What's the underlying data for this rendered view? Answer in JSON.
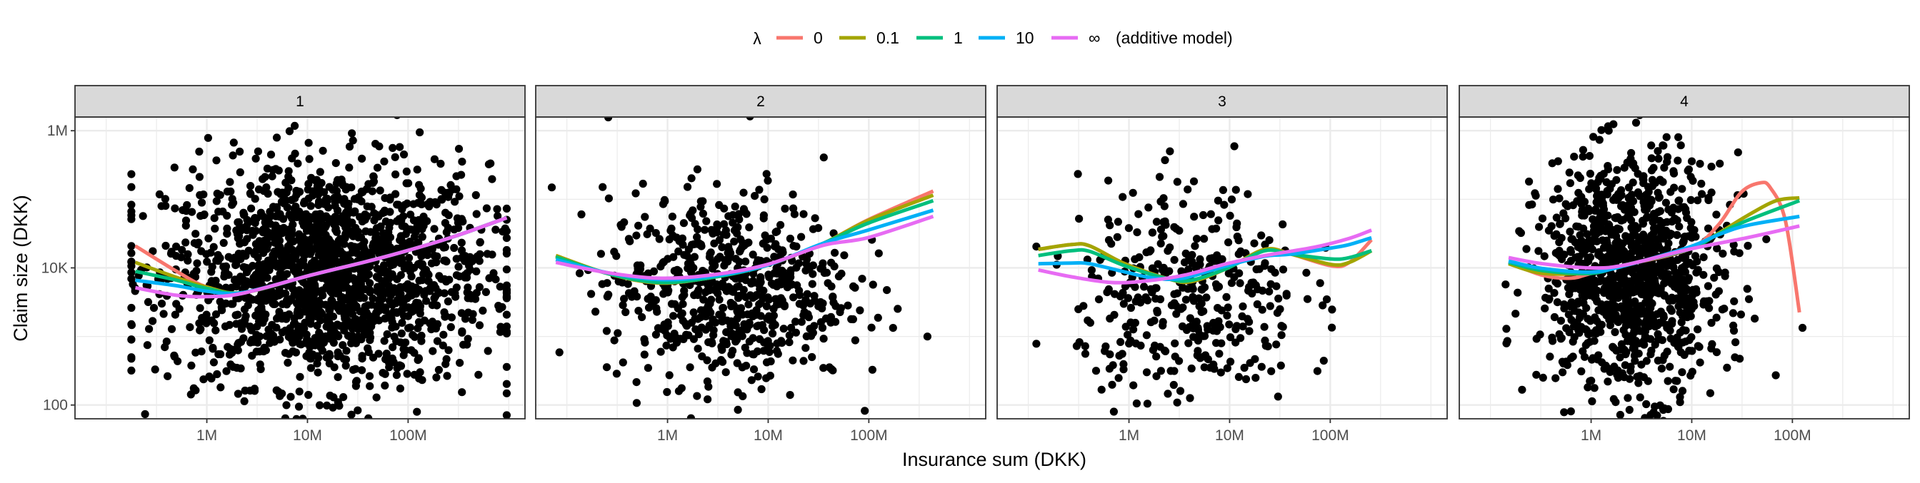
{
  "chart_data": {
    "type": "scatter",
    "title": "",
    "xlabel": "Insurance sum (DKK)",
    "ylabel": "Claim size (DKK)",
    "x_scale": "log10",
    "y_scale": "log10",
    "xlim": [
      49000,
      1450000000
    ],
    "ylim": [
      63,
      1585000
    ],
    "grid": true,
    "x_ticks": [
      {
        "value": 1000000,
        "label": "1M"
      },
      {
        "value": 10000000,
        "label": "10M"
      },
      {
        "value": 100000000,
        "label": "100M"
      }
    ],
    "y_ticks": [
      {
        "value": 100,
        "label": "100"
      },
      {
        "value": 10000,
        "label": "10K"
      },
      {
        "value": 1000000,
        "label": "1M"
      }
    ],
    "legend": {
      "placement": "top",
      "title": "λ",
      "entries": [
        {
          "label": "0",
          "color": "#F8766D"
        },
        {
          "label": "0.1",
          "color": "#A3A500"
        },
        {
          "label": "1",
          "color": "#00BF7D"
        },
        {
          "label": "10",
          "color": "#00B0F6"
        },
        {
          "label": "∞",
          "suffix": "(additive model)",
          "color": "#E76BF3"
        }
      ]
    },
    "facets": [
      {
        "label": "1",
        "points_summary": {
          "n": 1800,
          "log10_x_mean": 7.2,
          "log10_x_sd": 0.8,
          "log10_x_range": [
            5.25,
            8.98
          ],
          "log10_y_mean": 3.9,
          "log10_y_sd": 0.8
        },
        "lines": [
          {
            "lambda": "0",
            "log10_xy": [
              [
                5.29,
                4.32
              ],
              [
                5.7,
                3.95
              ],
              [
                6.0,
                3.72
              ],
              [
                6.36,
                3.64
              ],
              [
                7.05,
                3.9
              ],
              [
                7.74,
                4.15
              ],
              [
                8.42,
                4.44
              ],
              [
                8.98,
                4.73
              ]
            ]
          },
          {
            "lambda": "0.1",
            "log10_xy": [
              [
                5.29,
                4.08
              ],
              [
                5.7,
                3.86
              ],
              [
                6.0,
                3.72
              ],
              [
                6.36,
                3.64
              ],
              [
                7.05,
                3.9
              ],
              [
                7.74,
                4.15
              ],
              [
                8.42,
                4.44
              ],
              [
                8.98,
                4.73
              ]
            ]
          },
          {
            "lambda": "1",
            "log10_xy": [
              [
                5.29,
                3.95
              ],
              [
                5.7,
                3.82
              ],
              [
                6.0,
                3.7
              ],
              [
                6.36,
                3.64
              ],
              [
                7.05,
                3.9
              ],
              [
                7.74,
                4.15
              ],
              [
                8.42,
                4.44
              ],
              [
                8.98,
                4.73
              ]
            ]
          },
          {
            "lambda": "10",
            "log10_xy": [
              [
                5.29,
                3.82
              ],
              [
                5.7,
                3.74
              ],
              [
                6.0,
                3.66
              ],
              [
                6.36,
                3.64
              ],
              [
                7.05,
                3.9
              ],
              [
                7.74,
                4.15
              ],
              [
                8.42,
                4.44
              ],
              [
                8.98,
                4.73
              ]
            ]
          },
          {
            "lambda": "∞",
            "log10_xy": [
              [
                5.29,
                3.71
              ],
              [
                5.7,
                3.6
              ],
              [
                6.0,
                3.58
              ],
              [
                6.36,
                3.63
              ],
              [
                7.05,
                3.9
              ],
              [
                7.74,
                4.15
              ],
              [
                8.42,
                4.44
              ],
              [
                8.98,
                4.73
              ]
            ]
          }
        ]
      },
      {
        "label": "2",
        "points_summary": {
          "n": 650,
          "log10_x_mean": 6.6,
          "log10_x_sd": 0.6,
          "log10_x_range": [
            4.85,
            8.65
          ],
          "log10_y_mean": 3.7,
          "log10_y_sd": 0.7
        },
        "lines": [
          {
            "lambda": "0",
            "log10_xy": [
              [
                4.89,
                4.18
              ],
              [
                5.4,
                3.92
              ],
              [
                5.9,
                3.78
              ],
              [
                6.4,
                3.85
              ],
              [
                6.97,
                4.03
              ],
              [
                7.55,
                4.36
              ],
              [
                7.99,
                4.7
              ],
              [
                8.64,
                5.12
              ]
            ]
          },
          {
            "lambda": "0.1",
            "log10_xy": [
              [
                4.89,
                4.18
              ],
              [
                5.4,
                3.92
              ],
              [
                5.9,
                3.78
              ],
              [
                6.4,
                3.85
              ],
              [
                6.97,
                4.03
              ],
              [
                7.55,
                4.36
              ],
              [
                7.99,
                4.69
              ],
              [
                8.64,
                5.06
              ]
            ]
          },
          {
            "lambda": "1",
            "log10_xy": [
              [
                4.89,
                4.16
              ],
              [
                5.4,
                3.92
              ],
              [
                5.9,
                3.79
              ],
              [
                6.4,
                3.85
              ],
              [
                6.97,
                4.03
              ],
              [
                7.55,
                4.36
              ],
              [
                7.99,
                4.65
              ],
              [
                8.64,
                4.98
              ]
            ]
          },
          {
            "lambda": "10",
            "log10_xy": [
              [
                4.89,
                4.12
              ],
              [
                5.4,
                3.93
              ],
              [
                5.9,
                3.83
              ],
              [
                6.4,
                3.87
              ],
              [
                6.97,
                4.03
              ],
              [
                7.55,
                4.36
              ],
              [
                7.99,
                4.55
              ],
              [
                8.64,
                4.84
              ]
            ]
          },
          {
            "lambda": "∞",
            "log10_xy": [
              [
                4.89,
                4.08
              ],
              [
                5.4,
                3.93
              ],
              [
                5.9,
                3.85
              ],
              [
                6.4,
                3.89
              ],
              [
                6.97,
                4.04
              ],
              [
                7.55,
                4.33
              ],
              [
                7.99,
                4.44
              ],
              [
                8.64,
                4.75
              ]
            ]
          }
        ]
      },
      {
        "label": "3",
        "points_summary": {
          "n": 380,
          "log10_x_mean": 6.6,
          "log10_x_sd": 0.55,
          "log10_x_range": [
            5.08,
            8.42
          ],
          "log10_y_mean": 3.6,
          "log10_y_sd": 0.8
        },
        "lines": [
          {
            "lambda": "0",
            "log10_xy": [
              [
                5.1,
                4.27
              ],
              [
                5.43,
                4.34
              ],
              [
                5.61,
                4.32
              ],
              [
                5.96,
                4.06
              ],
              [
                6.39,
                3.84
              ],
              [
                6.62,
                3.8
              ],
              [
                6.97,
                3.99
              ],
              [
                7.35,
                4.27
              ],
              [
                7.61,
                4.2
              ],
              [
                8.01,
                4.03
              ],
              [
                8.19,
                4.08
              ],
              [
                8.41,
                4.41
              ]
            ]
          },
          {
            "lambda": "0.1",
            "log10_xy": [
              [
                5.1,
                4.27
              ],
              [
                5.43,
                4.34
              ],
              [
                5.61,
                4.32
              ],
              [
                5.96,
                4.06
              ],
              [
                6.39,
                3.84
              ],
              [
                6.62,
                3.8
              ],
              [
                6.97,
                3.99
              ],
              [
                7.35,
                4.27
              ],
              [
                7.61,
                4.2
              ],
              [
                8.01,
                4.05
              ],
              [
                8.19,
                4.08
              ],
              [
                8.41,
                4.25
              ]
            ]
          },
          {
            "lambda": "1",
            "log10_xy": [
              [
                5.1,
                4.18
              ],
              [
                5.43,
                4.25
              ],
              [
                5.61,
                4.24
              ],
              [
                5.96,
                4.03
              ],
              [
                6.39,
                3.84
              ],
              [
                6.62,
                3.82
              ],
              [
                6.97,
                3.99
              ],
              [
                7.35,
                4.25
              ],
              [
                7.61,
                4.2
              ],
              [
                8.01,
                4.13
              ],
              [
                8.19,
                4.15
              ],
              [
                8.41,
                4.25
              ]
            ]
          },
          {
            "lambda": "10",
            "log10_xy": [
              [
                5.1,
                4.06
              ],
              [
                5.43,
                4.07
              ],
              [
                5.61,
                4.06
              ],
              [
                5.96,
                3.94
              ],
              [
                6.25,
                3.85
              ],
              [
                6.54,
                3.85
              ],
              [
                6.97,
                4.03
              ],
              [
                7.35,
                4.17
              ],
              [
                7.61,
                4.2
              ],
              [
                8.01,
                4.29
              ],
              [
                8.19,
                4.34
              ],
              [
                8.41,
                4.44
              ]
            ]
          },
          {
            "lambda": "∞",
            "log10_xy": [
              [
                5.1,
                3.97
              ],
              [
                5.43,
                3.87
              ],
              [
                5.8,
                3.79
              ],
              [
                6.1,
                3.8
              ],
              [
                6.54,
                3.89
              ],
              [
                6.97,
                4.06
              ],
              [
                7.35,
                4.18
              ],
              [
                7.84,
                4.3
              ],
              [
                8.19,
                4.43
              ],
              [
                8.41,
                4.55
              ]
            ]
          }
        ]
      },
      {
        "label": "4",
        "points_summary": {
          "n": 1100,
          "log10_x_mean": 6.4,
          "log10_x_sd": 0.45,
          "log10_x_range": [
            5.15,
            8.1
          ],
          "log10_y_mean": 3.9,
          "log10_y_sd": 0.85
        },
        "lines": [
          {
            "lambda": "0",
            "log10_xy": [
              [
                5.18,
                4.08
              ],
              [
                5.52,
                3.89
              ],
              [
                5.8,
                3.85
              ],
              [
                6.0,
                3.92
              ],
              [
                6.33,
                4.04
              ],
              [
                6.97,
                4.27
              ],
              [
                7.26,
                4.62
              ],
              [
                7.49,
                5.1
              ],
              [
                7.68,
                5.24
              ],
              [
                7.78,
                5.17
              ],
              [
                7.93,
                4.69
              ],
              [
                8.07,
                3.35
              ]
            ]
          },
          {
            "lambda": "0.1",
            "log10_xy": [
              [
                5.18,
                4.06
              ],
              [
                5.52,
                3.92
              ],
              [
                6.0,
                3.93
              ],
              [
                6.33,
                4.04
              ],
              [
                6.97,
                4.27
              ],
              [
                7.26,
                4.5
              ],
              [
                7.55,
                4.76
              ],
              [
                7.84,
                4.98
              ],
              [
                8.07,
                5.02
              ]
            ]
          },
          {
            "lambda": "1",
            "log10_xy": [
              [
                5.18,
                4.08
              ],
              [
                5.52,
                3.96
              ],
              [
                6.0,
                3.92
              ],
              [
                6.33,
                4.04
              ],
              [
                6.97,
                4.27
              ],
              [
                7.26,
                4.49
              ],
              [
                7.55,
                4.69
              ],
              [
                8.07,
                4.98
              ]
            ]
          },
          {
            "lambda": "10",
            "log10_xy": [
              [
                5.18,
                4.1
              ],
              [
                5.52,
                3.99
              ],
              [
                6.0,
                3.94
              ],
              [
                6.33,
                4.03
              ],
              [
                6.97,
                4.3
              ],
              [
                7.26,
                4.48
              ],
              [
                7.55,
                4.62
              ],
              [
                8.07,
                4.75
              ]
            ]
          },
          {
            "lambda": "∞",
            "log10_xy": [
              [
                5.18,
                4.15
              ],
              [
                5.52,
                4.06
              ],
              [
                6.0,
                4.0
              ],
              [
                6.33,
                4.04
              ],
              [
                6.97,
                4.27
              ],
              [
                7.55,
                4.44
              ],
              [
                8.07,
                4.61
              ]
            ]
          }
        ]
      }
    ]
  }
}
